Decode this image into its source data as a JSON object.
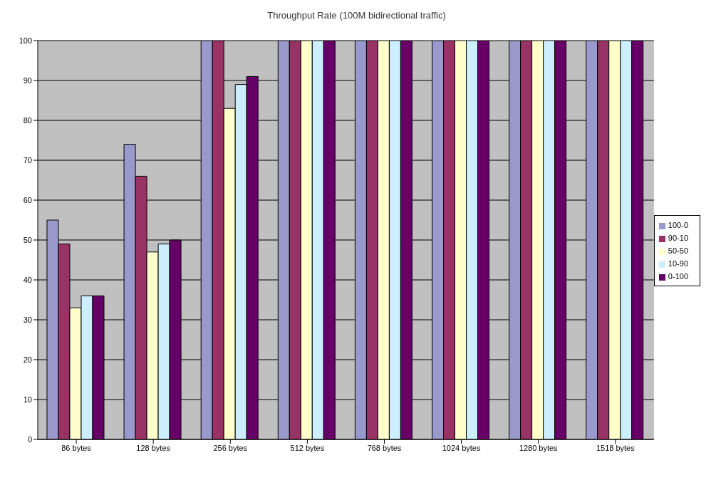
{
  "chart_data": {
    "type": "bar",
    "title": "Throughput Rate (100M bidirectional traffic)",
    "categories": [
      "86 bytes",
      "128 bytes",
      "256 bytes",
      "512 bytes",
      "768 bytes",
      "1024 bytes",
      "1280 bytes",
      "1518 bytes"
    ],
    "series": [
      {
        "name": "100-0",
        "color": "#9999cc",
        "values": [
          55,
          74,
          100,
          100,
          100,
          100,
          100,
          100
        ]
      },
      {
        "name": "90-10",
        "color": "#993366",
        "values": [
          49,
          66,
          100,
          100,
          100,
          100,
          100,
          100
        ]
      },
      {
        "name": "50-50",
        "color": "#ffffcc",
        "values": [
          33,
          47,
          83,
          100,
          100,
          100,
          100,
          100
        ]
      },
      {
        "name": "10-90",
        "color": "#cceeff",
        "values": [
          36,
          49,
          89,
          100,
          100,
          100,
          100,
          100
        ]
      },
      {
        "name": "0-100",
        "color": "#660066",
        "values": [
          36,
          50,
          91,
          100,
          100,
          100,
          100,
          100
        ]
      }
    ],
    "ylim": [
      0,
      100
    ],
    "yticks": [
      0,
      10,
      20,
      30,
      40,
      50,
      60,
      70,
      80,
      90,
      100
    ],
    "grid": "y",
    "legend": "right"
  }
}
